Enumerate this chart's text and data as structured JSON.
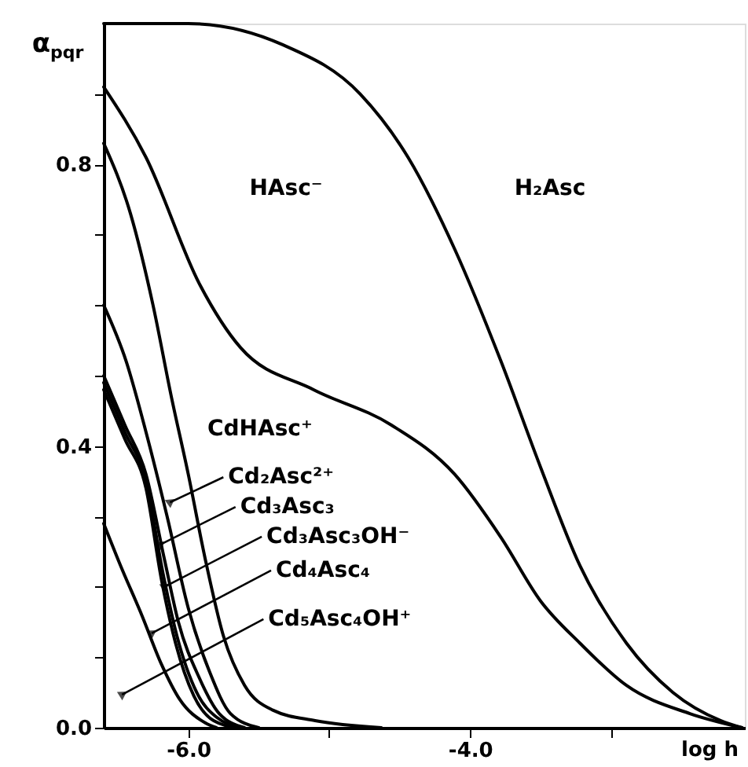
{
  "chart_data": {
    "type": "line",
    "xlabel": "log h",
    "ylabel": "α$_{pqr}$",
    "xlim": [
      -6.6,
      -2.05
    ],
    "ylim": [
      0,
      1.0
    ],
    "xticks": [
      {
        "value": -6,
        "label": "-6.0"
      },
      {
        "value": -5,
        "label": null
      },
      {
        "value": -4,
        "label": "-4.0"
      },
      {
        "value": -3,
        "label": null
      }
    ],
    "yticks": [
      {
        "value": 0,
        "label": "0.0"
      },
      {
        "value": 0.1,
        "label": null
      },
      {
        "value": 0.2,
        "label": null
      },
      {
        "value": 0.3,
        "label": null
      },
      {
        "value": 0.4,
        "label": "0.4"
      },
      {
        "value": 0.5,
        "label": null
      },
      {
        "value": 0.6,
        "label": null
      },
      {
        "value": 0.7,
        "label": null
      },
      {
        "value": 0.8,
        "label": "0.8"
      },
      {
        "value": 0.9,
        "label": null
      }
    ],
    "grid": false,
    "marker": "none",
    "line_style": "solid",
    "series": [
      {
        "color": "#000000",
        "x": [
          -6.6,
          -6.0,
          -5.33,
          -4.78,
          -4.44,
          -4.11,
          -3.78,
          -3.5,
          -3.22,
          -2.89,
          -2.56,
          -2.22,
          -2.07
        ],
        "values": [
          1.0,
          1.0,
          0.97,
          0.9,
          0.81,
          0.68,
          0.52,
          0.37,
          0.23,
          0.12,
          0.05,
          0.01,
          0.0
        ]
      },
      {
        "color": "#000000",
        "x": [
          -6.6,
          -6.3,
          -5.92,
          -5.63,
          -5.11,
          -4.56,
          -4.11,
          -3.78,
          -3.5,
          -3.22,
          -2.89,
          -2.44,
          -2.07
        ],
        "values": [
          0.91,
          0.81,
          0.63,
          0.54,
          0.48,
          0.43,
          0.36,
          0.27,
          0.18,
          0.12,
          0.06,
          0.02,
          0.0
        ]
      },
      {
        "color": "#000000",
        "x": [
          -6.6,
          -6.41,
          -6.25,
          -6.12,
          -6.0,
          -5.88,
          -5.75,
          -5.6,
          -5.4,
          -5.1,
          -4.63
        ],
        "values": [
          0.83,
          0.73,
          0.6,
          0.47,
          0.36,
          0.24,
          0.13,
          0.06,
          0.025,
          0.01,
          0.0
        ]
      },
      {
        "color": "#000000",
        "x": [
          -6.6,
          -6.44,
          -6.3,
          -6.15,
          -6.0,
          -5.85,
          -5.7,
          -5.5
        ],
        "values": [
          0.6,
          0.52,
          0.42,
          0.3,
          0.17,
          0.08,
          0.02,
          0.0
        ]
      },
      {
        "color": "#000000",
        "x": [
          -6.6,
          -6.45,
          -6.3,
          -6.17,
          -6.07,
          -5.92,
          -5.78,
          -5.6
        ],
        "values": [
          0.5,
          0.43,
          0.36,
          0.24,
          0.15,
          0.07,
          0.02,
          0.0
        ]
      },
      {
        "color": "#000000",
        "x": [
          -6.6,
          -6.45,
          -6.3,
          -6.18,
          -6.08,
          -5.94,
          -5.8,
          -5.62
        ],
        "values": [
          0.49,
          0.42,
          0.35,
          0.22,
          0.13,
          0.05,
          0.015,
          0.0
        ]
      },
      {
        "color": "#000000",
        "x": [
          -6.6,
          -6.45,
          -6.3,
          -6.19,
          -6.09,
          -5.96,
          -5.82,
          -5.65
        ],
        "values": [
          0.48,
          0.41,
          0.34,
          0.21,
          0.12,
          0.045,
          0.01,
          0.0
        ]
      },
      {
        "color": "#000000",
        "x": [
          -6.6,
          -6.48,
          -6.33,
          -6.19,
          -6.06,
          -5.88,
          -5.8
        ],
        "values": [
          0.29,
          0.23,
          0.16,
          0.09,
          0.04,
          0.007,
          0.0
        ]
      }
    ],
    "annotations": [
      "HAsc⁻",
      "H₂Asc",
      "CdHAsc⁺",
      {
        "text": "Cd₂Asc²⁺",
        "x": -6.13,
        "y": 0.32
      },
      {
        "text": "Cd₃Asc₃",
        "x": -6.2,
        "y": 0.26
      },
      {
        "text": "Cd₃Asc₃OH⁻",
        "x": -6.17,
        "y": 0.2
      },
      {
        "text": "Cd₄Asc₄",
        "x": -6.26,
        "y": 0.134
      },
      {
        "text": "Cd₅Asc₄OH⁺",
        "x": -6.47,
        "y": 0.047
      }
    ]
  }
}
